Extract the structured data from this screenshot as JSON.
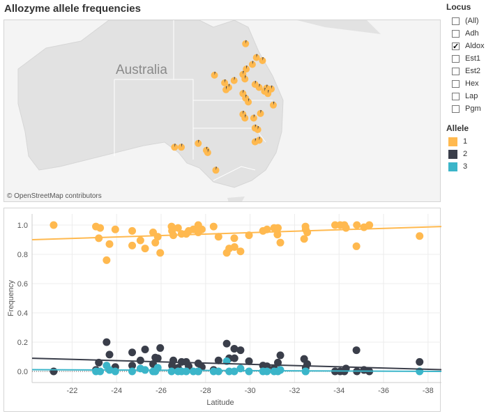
{
  "title": "Allozyme allele frequencies",
  "map": {
    "label": "Australia",
    "attribution": "© OpenStreetMap contributors",
    "markers": [
      [
        149.0,
        -21.3
      ],
      [
        150.6,
        -23.1
      ],
      [
        151.5,
        -23.5
      ],
      [
        150.0,
        -24.0
      ],
      [
        149.1,
        -24.6
      ],
      [
        148.6,
        -25.3
      ],
      [
        144.4,
        -25.4
      ],
      [
        148.9,
        -25.9
      ],
      [
        147.3,
        -26.1
      ],
      [
        145.9,
        -26.4
      ],
      [
        146.5,
        -27.0
      ],
      [
        146.1,
        -27.3
      ],
      [
        150.4,
        -26.6
      ],
      [
        151.0,
        -27.0
      ],
      [
        152.1,
        -27.1
      ],
      [
        152.8,
        -27.2
      ],
      [
        151.8,
        -27.5
      ],
      [
        152.3,
        -27.8
      ],
      [
        148.6,
        -27.8
      ],
      [
        149.0,
        -28.4
      ],
      [
        149.4,
        -28.9
      ],
      [
        153.1,
        -29.3
      ],
      [
        148.6,
        -30.5
      ],
      [
        148.9,
        -31.0
      ],
      [
        150.2,
        -31.0
      ],
      [
        151.2,
        -30.4
      ],
      [
        150.4,
        -32.3
      ],
      [
        150.8,
        -32.5
      ],
      [
        151.0,
        -33.9
      ],
      [
        150.4,
        -34.1
      ],
      [
        138.5,
        -34.8
      ],
      [
        139.5,
        -34.8
      ],
      [
        142.0,
        -34.3
      ],
      [
        143.2,
        -35.2
      ],
      [
        143.4,
        -35.5
      ],
      [
        144.6,
        -37.8
      ]
    ]
  },
  "filters": {
    "locus_title": "Locus",
    "locus": [
      {
        "label": "(All)",
        "checked": false
      },
      {
        "label": "Adh",
        "checked": false
      },
      {
        "label": "Aldox",
        "checked": true
      },
      {
        "label": "Est1",
        "checked": false
      },
      {
        "label": "Est2",
        "checked": false
      },
      {
        "label": "Hex",
        "checked": false
      },
      {
        "label": "Lap",
        "checked": false
      },
      {
        "label": "Pgm",
        "checked": false
      }
    ],
    "allele_title": "Allele",
    "alleles": [
      {
        "label": "1",
        "color": "#ffb94f"
      },
      {
        "label": "2",
        "color": "#3a3e4a"
      },
      {
        "label": "3",
        "color": "#3bb5c9"
      }
    ]
  },
  "chart_data": {
    "type": "scatter",
    "xlabel": "Latitude",
    "ylabel": "Frequency",
    "xlim": [
      -20.2,
      -38.6
    ],
    "ylim": [
      -0.076,
      1.076
    ],
    "xticks": [
      -22,
      -24,
      -26,
      -28,
      -30,
      -32,
      -34,
      -36,
      -38
    ],
    "yticks": [
      0.0,
      0.2,
      0.4,
      0.6,
      0.8,
      1.0
    ],
    "grid": true,
    "series": [
      {
        "name": "1",
        "color": "#ffb94f",
        "trend": [
          [
            -20.2,
            0.9
          ],
          [
            -38.6,
            0.99
          ]
        ],
        "points": [
          [
            -21.17,
            1.0
          ],
          [
            -23.07,
            0.99
          ],
          [
            -23.26,
            0.98
          ],
          [
            -23.2,
            0.91
          ],
          [
            -23.55,
            0.76
          ],
          [
            -23.68,
            0.87
          ],
          [
            -23.94,
            0.97
          ],
          [
            -24.7,
            0.96
          ],
          [
            -24.7,
            0.86
          ],
          [
            -25.07,
            0.895
          ],
          [
            -25.28,
            0.84
          ],
          [
            -25.64,
            0.95
          ],
          [
            -25.74,
            0.88
          ],
          [
            -25.85,
            0.92
          ],
          [
            -25.96,
            0.81
          ],
          [
            -26.47,
            0.99
          ],
          [
            -26.49,
            0.96
          ],
          [
            -26.55,
            0.93
          ],
          [
            -26.76,
            0.98
          ],
          [
            -26.92,
            0.94
          ],
          [
            -27.13,
            0.94
          ],
          [
            -27.24,
            0.96
          ],
          [
            -27.45,
            0.97
          ],
          [
            -27.67,
            1.0
          ],
          [
            -27.67,
            0.95
          ],
          [
            -27.83,
            0.97
          ],
          [
            -28.36,
            0.99
          ],
          [
            -28.58,
            0.92
          ],
          [
            -28.95,
            0.81
          ],
          [
            -29.06,
            0.84
          ],
          [
            -29.29,
            0.91
          ],
          [
            -29.3,
            0.85
          ],
          [
            -29.57,
            0.82
          ],
          [
            -29.95,
            0.93
          ],
          [
            -30.58,
            0.96
          ],
          [
            -30.76,
            0.97
          ],
          [
            -31.08,
            0.98
          ],
          [
            -31.25,
            0.98
          ],
          [
            -31.23,
            0.935
          ],
          [
            -31.36,
            0.88
          ],
          [
            -32.43,
            0.905
          ],
          [
            -32.49,
            0.99
          ],
          [
            -32.5,
            0.97
          ],
          [
            -32.57,
            0.95
          ],
          [
            -33.82,
            1.0
          ],
          [
            -34.05,
            1.0
          ],
          [
            -34.24,
            1.0
          ],
          [
            -34.31,
            0.98
          ],
          [
            -34.8,
            1.0
          ],
          [
            -34.78,
            0.855
          ],
          [
            -35.12,
            0.985
          ],
          [
            -35.36,
            1.0
          ],
          [
            -37.62,
            0.925
          ]
        ]
      },
      {
        "name": "2",
        "color": "#3a3e4a",
        "trend": [
          [
            -20.2,
            0.09
          ],
          [
            -38.6,
            0.012
          ]
        ],
        "points": [
          [
            -21.17,
            0.0
          ],
          [
            -23.07,
            0.01
          ],
          [
            -23.2,
            0.06
          ],
          [
            -23.55,
            0.2
          ],
          [
            -23.68,
            0.115
          ],
          [
            -23.94,
            0.03
          ],
          [
            -24.7,
            0.13
          ],
          [
            -24.7,
            0.04
          ],
          [
            -25.07,
            0.075
          ],
          [
            -25.28,
            0.15
          ],
          [
            -25.64,
            0.05
          ],
          [
            -25.74,
            0.095
          ],
          [
            -25.85,
            0.09
          ],
          [
            -25.96,
            0.16
          ],
          [
            -26.55,
            0.075
          ],
          [
            -26.49,
            0.04
          ],
          [
            -26.76,
            0.025
          ],
          [
            -26.92,
            0.065
          ],
          [
            -27.13,
            0.065
          ],
          [
            -27.24,
            0.035
          ],
          [
            -27.67,
            0.055
          ],
          [
            -27.83,
            0.03
          ],
          [
            -27.67,
            0.0
          ],
          [
            -28.36,
            0.01
          ],
          [
            -28.58,
            0.075
          ],
          [
            -28.95,
            0.19
          ],
          [
            -29.06,
            0.09
          ],
          [
            -29.29,
            0.155
          ],
          [
            -29.3,
            0.09
          ],
          [
            -29.57,
            0.145
          ],
          [
            -29.95,
            0.07
          ],
          [
            -30.58,
            0.04
          ],
          [
            -30.76,
            0.035
          ],
          [
            -31.08,
            0.02
          ],
          [
            -31.25,
            0.06
          ],
          [
            -31.36,
            0.11
          ],
          [
            -32.43,
            0.085
          ],
          [
            -32.5,
            0.025
          ],
          [
            -32.57,
            0.05
          ],
          [
            -33.82,
            0.0
          ],
          [
            -34.05,
            0.0
          ],
          [
            -34.24,
            0.0
          ],
          [
            -34.31,
            0.02
          ],
          [
            -34.8,
            0.0
          ],
          [
            -34.78,
            0.145
          ],
          [
            -35.12,
            0.01
          ],
          [
            -35.36,
            0.0
          ],
          [
            -37.62,
            0.065
          ]
        ]
      },
      {
        "name": "3",
        "color": "#3bb5c9",
        "trend": [
          [
            -20.2,
            0.012
          ],
          [
            -38.6,
            0.0
          ]
        ],
        "points": [
          [
            -23.07,
            0.0
          ],
          [
            -23.26,
            0.0
          ],
          [
            -23.55,
            0.04
          ],
          [
            -23.68,
            0.01
          ],
          [
            -23.94,
            0.0
          ],
          [
            -24.7,
            0.0
          ],
          [
            -25.07,
            0.02
          ],
          [
            -25.28,
            0.01
          ],
          [
            -25.64,
            0.0
          ],
          [
            -25.74,
            0.0
          ],
          [
            -25.85,
            0.025
          ],
          [
            -26.47,
            0.0
          ],
          [
            -26.76,
            0.0
          ],
          [
            -26.92,
            0.0
          ],
          [
            -27.13,
            0.0
          ],
          [
            -27.45,
            0.0
          ],
          [
            -27.67,
            0.0
          ],
          [
            -28.36,
            0.0
          ],
          [
            -28.58,
            0.0
          ],
          [
            -28.95,
            0.07
          ],
          [
            -29.06,
            0.0
          ],
          [
            -29.29,
            0.0
          ],
          [
            -29.57,
            0.02
          ],
          [
            -29.95,
            0.0
          ],
          [
            -30.58,
            0.0
          ],
          [
            -30.76,
            0.0
          ],
          [
            -31.08,
            0.0
          ],
          [
            -31.25,
            0.0
          ],
          [
            -31.36,
            0.01
          ],
          [
            -32.49,
            0.0
          ],
          [
            -32.5,
            0.0
          ],
          [
            -37.62,
            0.0
          ]
        ]
      }
    ]
  }
}
